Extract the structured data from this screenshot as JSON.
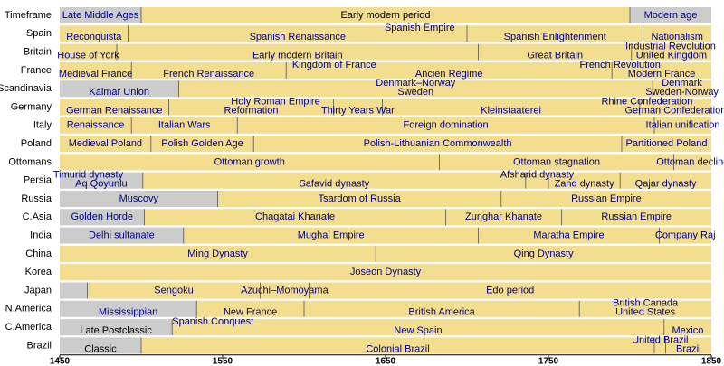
{
  "chart_data": {
    "type": "timeline",
    "xlim": [
      1450,
      1850
    ],
    "xticks": [
      1450,
      1550,
      1650,
      1750,
      1850
    ],
    "bar_color": "#f3dd8e",
    "label_color": "#00008b",
    "rows": [
      {
        "name": "Timeframe",
        "periods": [
          {
            "start": 1450,
            "end": 1500,
            "label": "Late Middle Ages",
            "color": "#cccccc"
          },
          {
            "start": 1500,
            "end": 1800,
            "label": "Early modern period",
            "label_color": "#000000"
          },
          {
            "start": 1800,
            "end": 1850,
            "label": "Modern age",
            "color": "#cccccc"
          }
        ]
      },
      {
        "name": "Spain",
        "periods": [
          {
            "start": 1450,
            "end": 1492,
            "label": "Reconquista"
          },
          {
            "start": 1492,
            "end": 1700,
            "label": "Spanish Renaissance"
          },
          {
            "start": 1700,
            "end": 1808,
            "label": "Spanish Enlightenment"
          },
          {
            "start": 1808,
            "end": 1850,
            "label": "Nationalism"
          }
        ],
        "overlays": [
          {
            "start": 1492,
            "end": 1850,
            "label": "Spanish Empire"
          }
        ]
      },
      {
        "name": "Britain",
        "periods": [
          {
            "start": 1450,
            "end": 1485,
            "label": "House of York"
          },
          {
            "start": 1485,
            "end": 1707,
            "label": "Early modern Britain"
          },
          {
            "start": 1707,
            "end": 1801,
            "label": "Great Britain"
          },
          {
            "start": 1801,
            "end": 1850,
            "label": "United Kingdom"
          }
        ],
        "overlays": [
          {
            "start": 1800,
            "end": 1850,
            "label": "Industrial Revolution"
          }
        ]
      },
      {
        "name": "France",
        "periods": [
          {
            "start": 1450,
            "end": 1494,
            "label": "Medieval France"
          },
          {
            "start": 1494,
            "end": 1589,
            "label": "French Renaissance"
          },
          {
            "start": 1589,
            "end": 1789,
            "label": "Ancien Régime"
          },
          {
            "start": 1789,
            "end": 1850,
            "label": "Modern France"
          }
        ],
        "overlays": [
          {
            "start": 1589,
            "end": 1648,
            "label": "Kingdom of France"
          },
          {
            "start": 1789,
            "end": 1799,
            "label": "French Revolution"
          }
        ]
      },
      {
        "name": "Scandinavia",
        "periods": [
          {
            "start": 1450,
            "end": 1523,
            "label": "Kalmar Union",
            "color": "#cccccc"
          },
          {
            "start": 1523,
            "end": 1814,
            "label": "Sweden"
          },
          {
            "start": 1814,
            "end": 1850,
            "label": "Sweden-Norway"
          }
        ],
        "overlays": [
          {
            "start": 1523,
            "end": 1814,
            "label": "Denmark–Norway"
          },
          {
            "start": 1814,
            "end": 1850,
            "label": "Denmark"
          }
        ]
      },
      {
        "name": "Germany",
        "periods": [
          {
            "start": 1450,
            "end": 1517,
            "label": "German Renaissance"
          },
          {
            "start": 1517,
            "end": 1618,
            "label": "Reformation"
          },
          {
            "start": 1618,
            "end": 1648,
            "label": "Thirty Years War"
          },
          {
            "start": 1648,
            "end": 1806,
            "label": "Kleinstaaterei"
          },
          {
            "start": 1806,
            "end": 1850,
            "label": "German Confederation"
          }
        ],
        "overlays": [
          {
            "start": 1517,
            "end": 1648,
            "label": "Holy Roman Empire"
          },
          {
            "start": 1806,
            "end": 1815,
            "label": "Rhine Confederation"
          }
        ]
      },
      {
        "name": "Italy",
        "periods": [
          {
            "start": 1450,
            "end": 1494,
            "label": "Renaissance"
          },
          {
            "start": 1494,
            "end": 1559,
            "label": "Italian Wars"
          },
          {
            "start": 1559,
            "end": 1815,
            "label": "Foreign domination"
          },
          {
            "start": 1815,
            "end": 1850,
            "label": "Italian unification"
          }
        ]
      },
      {
        "name": "Poland",
        "periods": [
          {
            "start": 1450,
            "end": 1506,
            "label": "Medieval Poland"
          },
          {
            "start": 1506,
            "end": 1569,
            "label": "Polish Golden Age"
          },
          {
            "start": 1569,
            "end": 1795,
            "label": "Polish-Lithuanian Commonwealth"
          },
          {
            "start": 1795,
            "end": 1850,
            "label": "Partitioned Poland"
          }
        ]
      },
      {
        "name": "Ottomans",
        "periods": [
          {
            "start": 1450,
            "end": 1683,
            "label": "Ottoman growth"
          },
          {
            "start": 1683,
            "end": 1827,
            "label": "Ottoman stagnation"
          },
          {
            "start": 1827,
            "end": 1850,
            "label": "Ottoman decline"
          }
        ]
      },
      {
        "name": "Persia",
        "periods": [
          {
            "start": 1450,
            "end": 1501,
            "label": "Aq Qoyunlu",
            "color": "#cccccc"
          },
          {
            "start": 1501,
            "end": 1736,
            "label": "Safavid dynasty"
          },
          {
            "start": 1736,
            "end": 1750,
            "label": null
          },
          {
            "start": 1750,
            "end": 1794,
            "label": "Zand dynasty"
          },
          {
            "start": 1794,
            "end": 1850,
            "label": "Qajar dynasty"
          }
        ],
        "overlays": [
          {
            "start": 1450,
            "end": 1485,
            "label": "Timurid dynasty"
          },
          {
            "start": 1736,
            "end": 1750,
            "label": "Afsharid dynasty"
          }
        ]
      },
      {
        "name": "Russia",
        "periods": [
          {
            "start": 1450,
            "end": 1547,
            "label": "Muscovy",
            "color": "#cccccc"
          },
          {
            "start": 1547,
            "end": 1721,
            "label": "Tsardom of Russia"
          },
          {
            "start": 1721,
            "end": 1850,
            "label": "Russian Empire"
          }
        ]
      },
      {
        "name": "C.Asia",
        "periods": [
          {
            "start": 1450,
            "end": 1502,
            "label": "Golden Horde",
            "color": "#cccccc"
          },
          {
            "start": 1502,
            "end": 1687,
            "label": "Chagatai Khanate"
          },
          {
            "start": 1687,
            "end": 1758,
            "label": "Zunghar Khanate"
          },
          {
            "start": 1758,
            "end": 1850,
            "label": "Russian Empire"
          }
        ]
      },
      {
        "name": "India",
        "periods": [
          {
            "start": 1450,
            "end": 1526,
            "label": "Delhi sultanate",
            "color": "#cccccc"
          },
          {
            "start": 1526,
            "end": 1707,
            "label": "Mughal Empire"
          },
          {
            "start": 1707,
            "end": 1818,
            "label": "Maratha Empire"
          },
          {
            "start": 1818,
            "end": 1850,
            "label": "Company Raj"
          }
        ]
      },
      {
        "name": "China",
        "periods": [
          {
            "start": 1450,
            "end": 1644,
            "label": "Ming Dynasty"
          },
          {
            "start": 1644,
            "end": 1850,
            "label": "Qing Dynasty"
          }
        ]
      },
      {
        "name": "Korea",
        "periods": [
          {
            "start": 1450,
            "end": 1850,
            "label": "Joseon Dynasty"
          }
        ]
      },
      {
        "name": "Japan",
        "periods": [
          {
            "start": 1450,
            "end": 1467,
            "label": null,
            "color": "#cccccc"
          },
          {
            "start": 1467,
            "end": 1573,
            "label": "Sengoku"
          },
          {
            "start": 1573,
            "end": 1603,
            "label": "Azuchi–Momoyama"
          },
          {
            "start": 1603,
            "end": 1850,
            "label": "Edo period"
          }
        ]
      },
      {
        "name": "N.America",
        "periods": [
          {
            "start": 1450,
            "end": 1534,
            "label": "Mississippian",
            "color": "#cccccc"
          },
          {
            "start": 1534,
            "end": 1600,
            "label": "New France"
          },
          {
            "start": 1600,
            "end": 1769,
            "label": "British America"
          },
          {
            "start": 1769,
            "end": 1850,
            "label": "United States"
          }
        ],
        "overlays": [
          {
            "start": 1769,
            "end": 1850,
            "label": "British Canada"
          }
        ]
      },
      {
        "name": "C.America",
        "periods": [
          {
            "start": 1450,
            "end": 1519,
            "label": "Late Postclassic",
            "color": "#cccccc",
            "label_color": "#000000"
          },
          {
            "start": 1519,
            "end": 1821,
            "label": "New Spain"
          },
          {
            "start": 1821,
            "end": 1850,
            "label": "Mexico"
          }
        ],
        "overlays": [
          {
            "start": 1519,
            "end": 1569,
            "label": "Spanish Conquest"
          }
        ]
      },
      {
        "name": "Brazil",
        "periods": [
          {
            "start": 1450,
            "end": 1500,
            "label": "Classic",
            "color": "#cccccc",
            "label_color": "#000000"
          },
          {
            "start": 1500,
            "end": 1815,
            "label": "Colonial Brazil"
          },
          {
            "start": 1815,
            "end": 1822,
            "label": null
          },
          {
            "start": 1822,
            "end": 1850,
            "label": "Brazil"
          }
        ],
        "overlays": [
          {
            "start": 1815,
            "end": 1822,
            "label": "United Brazil"
          }
        ]
      }
    ]
  }
}
